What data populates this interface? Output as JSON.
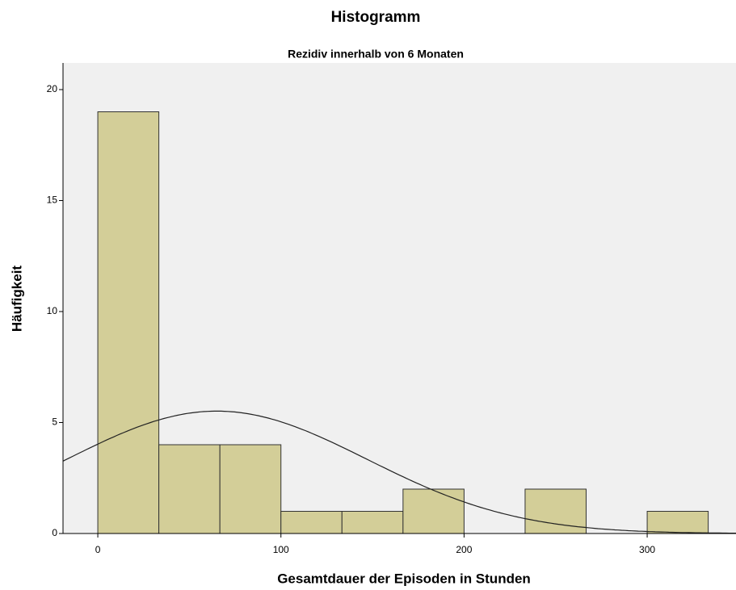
{
  "chart_data": {
    "type": "histogram",
    "title": "Histogramm",
    "subtitle": "Rezidiv innerhalb von 6 Monaten",
    "x_label": "Gesamtdauer der Episoden in Stunden",
    "y_label": "Häufigkeit",
    "bins": [
      0,
      33.33,
      66.67,
      100,
      133.33,
      166.67,
      200,
      233.33,
      266.67,
      300,
      333.33
    ],
    "values": [
      19,
      4,
      4,
      1,
      1,
      2,
      0,
      2,
      0,
      1
    ],
    "color": "#d3ce98",
    "edge_color": "#333333",
    "background": "#f0f0f0",
    "normal_curve": {
      "mean": 65,
      "std": 82
    },
    "xlim": [
      -19,
      348.5
    ],
    "xticks": [
      0,
      100,
      200,
      300
    ],
    "ylim": [
      0,
      21.2
    ],
    "yticks": [
      0,
      5,
      10,
      15,
      20
    ]
  }
}
